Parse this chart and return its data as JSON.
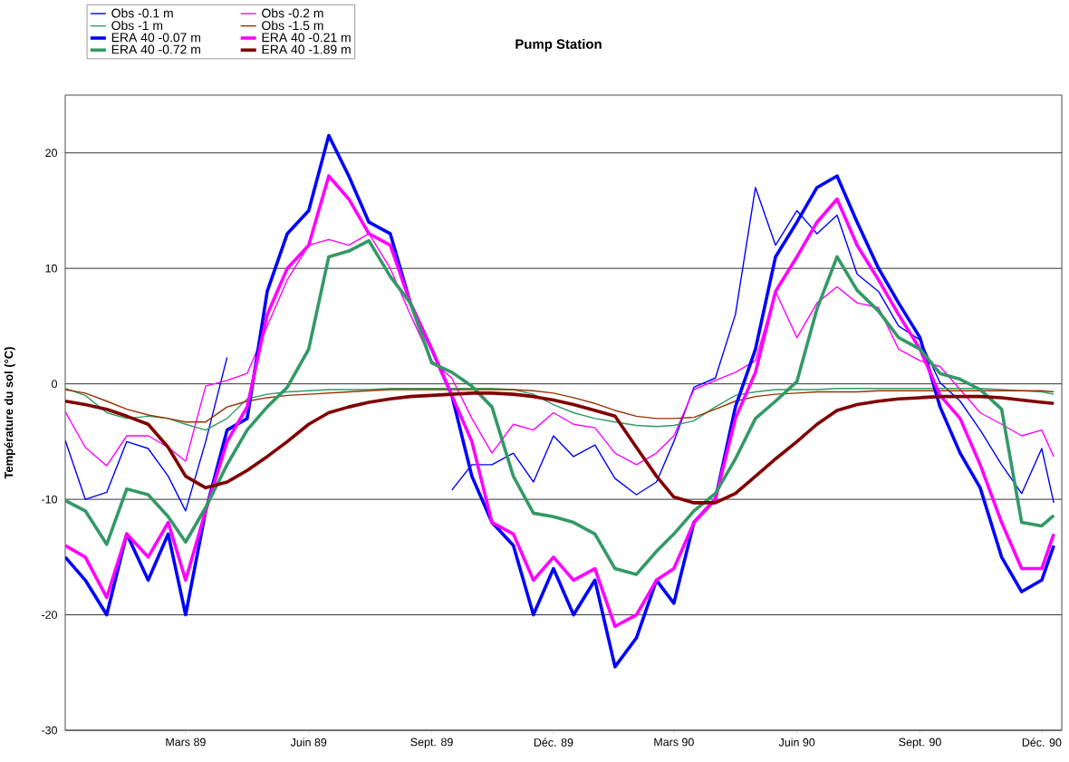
{
  "chart_data": {
    "type": "line",
    "title": "Pump Station",
    "ylabel": "Température du sol (°C)",
    "x": [
      "1988-12-01",
      "1988-12-16",
      "1989-01-01",
      "1989-01-16",
      "1989-02-01",
      "1989-02-16",
      "1989-03-01",
      "1989-03-16",
      "1989-04-01",
      "1989-04-16",
      "1989-05-01",
      "1989-05-16",
      "1989-06-01",
      "1989-06-16",
      "1989-07-01",
      "1989-07-16",
      "1989-08-01",
      "1989-08-16",
      "1989-09-01",
      "1989-09-16",
      "1989-10-01",
      "1989-10-16",
      "1989-11-01",
      "1989-11-16",
      "1989-12-01",
      "1989-12-16",
      "1990-01-01",
      "1990-01-16",
      "1990-02-01",
      "1990-02-16",
      "1990-03-01",
      "1990-03-16",
      "1990-04-01",
      "1990-04-16",
      "1990-05-01",
      "1990-05-16",
      "1990-06-01",
      "1990-06-16",
      "1990-07-01",
      "1990-07-16",
      "1990-08-01",
      "1990-08-16",
      "1990-09-01",
      "1990-09-16",
      "1990-10-01",
      "1990-10-16",
      "1990-11-01",
      "1990-11-16",
      "1990-12-01",
      "1990-12-10"
    ],
    "series": [
      {
        "name": "Obs -0.1 m",
        "color": "#0000ff",
        "values": [
          -4.9,
          -10,
          -9.4,
          -5,
          -5.6,
          -8,
          -11,
          -5,
          2.3,
          null,
          null,
          null,
          null,
          null,
          null,
          null,
          null,
          null,
          null,
          -9.2,
          -7,
          -7,
          -6,
          -8.5,
          -4.5,
          -6.3,
          -5.3,
          -8.2,
          -9.6,
          -8.5,
          -5,
          -0.3,
          0.5,
          6,
          17,
          12,
          15,
          13,
          14.6,
          9.5,
          8,
          5,
          3.8,
          0.1,
          -1.5,
          -4,
          -7,
          -9.5,
          -5.6,
          -10.3
        ]
      },
      {
        "name": "Obs -0.2 m",
        "color": "#ff00ff",
        "values": [
          -2.4,
          -5.5,
          -7.1,
          -4.5,
          -4.5,
          -5.5,
          -6.7,
          -0.2,
          0.3,
          0.9,
          5,
          9,
          12,
          12.5,
          12,
          13,
          10,
          6,
          2,
          0.5,
          -3,
          -6,
          -3.5,
          -4,
          -2.5,
          -3.5,
          -3.8,
          -6,
          -7,
          -6,
          -4.5,
          -0.5,
          0.3,
          1,
          2,
          8,
          4,
          7,
          8.4,
          7,
          6.6,
          3,
          2,
          1.5,
          -0.5,
          -2.5,
          -3.5,
          -4.5,
          -4,
          -6.3
        ]
      },
      {
        "name": "Obs -1 m",
        "color": "#339966",
        "values": [
          -0.4,
          -1,
          -2.5,
          -3,
          -2.8,
          -3,
          -3.5,
          -4,
          -3,
          -1.3,
          -0.9,
          -0.7,
          -0.6,
          -0.5,
          -0.5,
          -0.5,
          -0.4,
          -0.4,
          -0.4,
          -0.4,
          -0.4,
          -0.4,
          -0.5,
          -0.9,
          -1.8,
          -2.5,
          -3,
          -3.3,
          -3.6,
          -3.7,
          -3.6,
          -3.2,
          -2,
          -1,
          -0.7,
          -0.5,
          -0.5,
          -0.5,
          -0.4,
          -0.4,
          -0.4,
          -0.4,
          -0.4,
          -0.4,
          -0.4,
          -0.4,
          -0.5,
          -0.6,
          -0.7,
          -0.9
        ]
      },
      {
        "name": "Obs -1.5 m",
        "color": "#993300",
        "values": [
          -0.5,
          -0.8,
          -1.5,
          -2.2,
          -2.7,
          -3,
          -3.3,
          -3.3,
          -2,
          -1.5,
          -1.2,
          -1,
          -0.9,
          -0.8,
          -0.7,
          -0.6,
          -0.5,
          -0.5,
          -0.5,
          -0.5,
          -0.5,
          -0.5,
          -0.5,
          -0.6,
          -0.8,
          -1.2,
          -1.7,
          -2.3,
          -2.8,
          -3,
          -3,
          -2.9,
          -2.2,
          -1.5,
          -1.1,
          -0.9,
          -0.8,
          -0.7,
          -0.7,
          -0.7,
          -0.6,
          -0.6,
          -0.6,
          -0.6,
          -0.6,
          -0.6,
          -0.6,
          -0.6,
          -0.6,
          -0.7
        ]
      },
      {
        "name": "ERA 40 -0.07 m",
        "color": "#0000ff",
        "values": [
          -15,
          -17,
          -20,
          -13,
          -17,
          -13,
          -20,
          -11,
          -4,
          -3,
          8,
          13,
          15,
          21.5,
          18,
          14,
          13,
          7,
          3,
          -1,
          -8,
          -12,
          -14,
          -20,
          -16,
          -20,
          -17,
          -24.5,
          -22,
          -17,
          -19,
          -12,
          -10,
          -2,
          3,
          11,
          14,
          17,
          18,
          14,
          10,
          7,
          4,
          -2,
          -6,
          -9,
          -15,
          -18,
          -17,
          -14
        ]
      },
      {
        "name": "ERA 40 -0.21 m",
        "color": "#ff00ff",
        "values": [
          -14,
          -15,
          -18.5,
          -13,
          -15,
          -12,
          -17,
          -11,
          -5,
          -2,
          6,
          10,
          12,
          18,
          16,
          13,
          12,
          7,
          3,
          -1,
          -5,
          -12,
          -13,
          -17,
          -15,
          -17,
          -16,
          -21,
          -20,
          -17,
          -16,
          -12,
          -10,
          -3,
          1,
          8,
          11,
          14,
          16,
          12,
          9,
          6,
          3,
          -1,
          -3,
          -7,
          -12,
          -16,
          -16,
          -13
        ]
      },
      {
        "name": "ERA 40 -0.72 m",
        "color": "#339966",
        "values": [
          -10.1,
          -11,
          -13.9,
          -9.1,
          -9.6,
          -11.5,
          -13.7,
          -10.7,
          -7,
          -4,
          -2,
          -0.3,
          3,
          11,
          11.5,
          12.4,
          9.3,
          7,
          1.8,
          1,
          -0.2,
          -2,
          -8,
          -11.2,
          -11.5,
          -12,
          -13,
          -16,
          -16.5,
          -14.5,
          -13,
          -11,
          -9.5,
          -6.5,
          -3,
          -1.5,
          0.2,
          6.5,
          11,
          8.1,
          6.3,
          4,
          3,
          0.9,
          0.4,
          -0.5,
          -2.2,
          -12,
          -12.3,
          -11.4
        ]
      },
      {
        "name": "ERA 40 -1.89 m",
        "color": "#800000",
        "values": [
          -1.5,
          -1.8,
          -2.2,
          -2.8,
          -3.5,
          -5.5,
          -8,
          -9,
          -8.5,
          -7.5,
          -6.3,
          -5,
          -3.5,
          -2.5,
          -2,
          -1.6,
          -1.3,
          -1.1,
          -1,
          -0.9,
          -0.8,
          -0.8,
          -0.9,
          -1.1,
          -1.4,
          -1.8,
          -2.3,
          -2.8,
          -5.5,
          -8,
          -9.8,
          -10.3,
          -10.3,
          -9.5,
          -8,
          -6.5,
          -5,
          -3.5,
          -2.3,
          -1.8,
          -1.5,
          -1.3,
          -1.2,
          -1.1,
          -1.1,
          -1.1,
          -1.2,
          -1.4,
          -1.6,
          -1.7
        ]
      }
    ],
    "xlim": [
      "1988-12-01",
      "1990-12-16"
    ],
    "xticks": [
      {
        "value": "1988-12-01",
        "label": null
      },
      {
        "value": "1989-03-01",
        "label": "Mars 89"
      },
      {
        "value": "1989-06-01",
        "label": "Juin 89"
      },
      {
        "value": "1989-09-01",
        "label": "Sept. 89"
      },
      {
        "value": "1989-12-01",
        "label": "Déc. 89"
      },
      {
        "value": "1990-03-01",
        "label": "Mars 90"
      },
      {
        "value": "1990-06-01",
        "label": "Juin 90"
      },
      {
        "value": "1990-09-01",
        "label": "Sept. 90"
      },
      {
        "value": "1990-12-01",
        "label": "Déc. 90"
      }
    ],
    "ylim": [
      -30,
      25
    ],
    "yticks": [
      -30,
      -20,
      -10,
      0,
      10,
      20
    ],
    "grid": "y",
    "legend": "top left",
    "marker": "none",
    "line_style": "solid"
  }
}
